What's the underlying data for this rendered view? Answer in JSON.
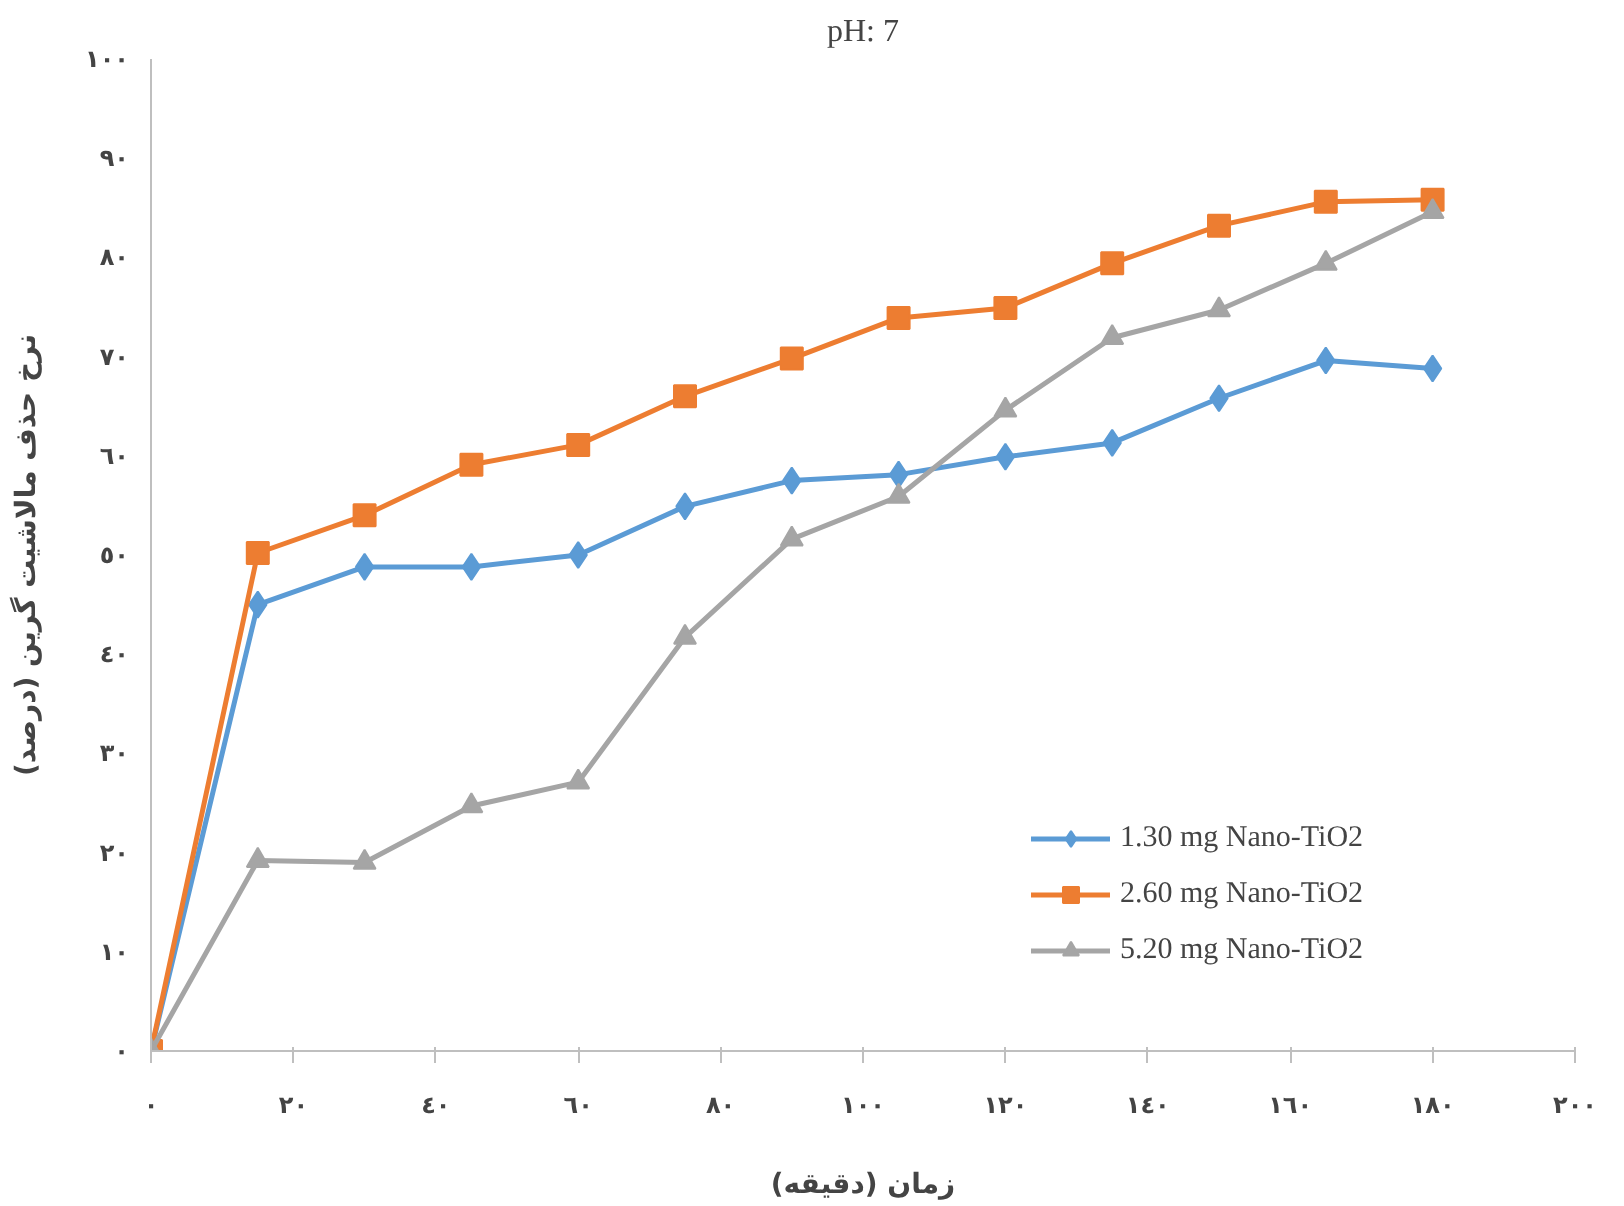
{
  "chart_data": {
    "type": "line",
    "title": "pH: 7",
    "xlabel": "زمان (دقیقه)",
    "ylabel": "نرخ حذف مالاشیت گرین (درصد)",
    "x": [
      0,
      15,
      30,
      45,
      60,
      75,
      90,
      105,
      120,
      135,
      150,
      165,
      180
    ],
    "series": [
      {
        "name": "1.30 mg Nano-TiO2",
        "color": "#5b9bd5",
        "marker": "diamond",
        "values": [
          0,
          45,
          48.8,
          48.8,
          50,
          54.9,
          57.5,
          58.1,
          59.9,
          61.3,
          65.8,
          69.6,
          68.8
        ]
      },
      {
        "name": "2.60 mg Nano-TiO2",
        "color": "#ed7d31",
        "marker": "square",
        "values": [
          0,
          50.2,
          54,
          59.1,
          61.1,
          66,
          69.8,
          73.9,
          74.9,
          79.4,
          83.2,
          85.6,
          85.8
        ]
      },
      {
        "name": "5.20 mg Nano-TiO2",
        "color": "#a5a5a5",
        "marker": "triangle",
        "values": [
          0,
          19.2,
          19,
          24.7,
          27.1,
          41.7,
          51.6,
          55.9,
          64.6,
          71.9,
          74.7,
          79.4,
          84.6
        ]
      }
    ],
    "xlim": [
      0,
      200
    ],
    "ylim": [
      0,
      100
    ],
    "xticks": [
      {
        "value": 0,
        "label": "٠"
      },
      {
        "value": 20,
        "label": "٢٠"
      },
      {
        "value": 40,
        "label": "٤٠"
      },
      {
        "value": 60,
        "label": "٦٠"
      },
      {
        "value": 80,
        "label": "٨٠"
      },
      {
        "value": 100,
        "label": "١٠٠"
      },
      {
        "value": 120,
        "label": "١٢٠"
      },
      {
        "value": 140,
        "label": "١٤٠"
      },
      {
        "value": 160,
        "label": "١٦٠"
      },
      {
        "value": 180,
        "label": "١٨٠"
      },
      {
        "value": 200,
        "label": "٢٠٠"
      }
    ],
    "yticks": [
      {
        "value": 0,
        "label": "٠"
      },
      {
        "value": 10,
        "label": "١٠"
      },
      {
        "value": 20,
        "label": "٢٠"
      },
      {
        "value": 30,
        "label": "٣٠"
      },
      {
        "value": 40,
        "label": "٤٠"
      },
      {
        "value": 50,
        "label": "٥٠"
      },
      {
        "value": 60,
        "label": "٦٠"
      },
      {
        "value": 70,
        "label": "٧٠"
      },
      {
        "value": 80,
        "label": "٨٠"
      },
      {
        "value": 90,
        "label": "٩٠"
      },
      {
        "value": 100,
        "label": "١٠٠"
      }
    ],
    "grid": false,
    "legend": "right",
    "line_style": "solid"
  }
}
